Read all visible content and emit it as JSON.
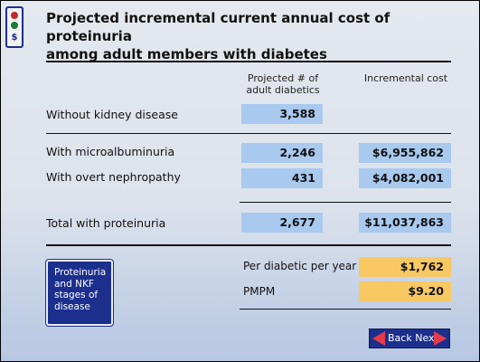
{
  "title_line1": "Projected incremental current annual cost of proteinuria",
  "title_line2": "among adult members with diabetes",
  "columns": {
    "projected_line1": "Projected # of",
    "projected_line2": "adult diabetics",
    "incremental": "Incremental cost"
  },
  "rows": [
    {
      "label": "Without kidney disease",
      "projected": "3,588",
      "incremental": ""
    },
    {
      "label": "With microalbuminuria",
      "projected": "2,246",
      "incremental": "$6,955,862"
    },
    {
      "label": "With overt nephropathy",
      "projected": "431",
      "incremental": "$4,082,001"
    },
    {
      "label": "Total with proteinuria",
      "projected": "2,677",
      "incremental": "$11,037,863"
    }
  ],
  "summary": [
    {
      "label": "Per diabetic per year",
      "value": "$1,762"
    },
    {
      "label": "PMPM",
      "value": "$9.20"
    }
  ],
  "info_button": "Proteinuria\nand NKF\nstages of\ndisease",
  "nav": {
    "back": "Back",
    "next": "Next"
  },
  "logo_symbol": "$",
  "colors": {
    "cell_blue": "#a9c9ef",
    "cell_gold": "#f8c863",
    "button_navy": "#1c2f8c",
    "arrow_red": "#e53a4a"
  },
  "icons": {
    "nav_back": "left-arrow-icon",
    "nav_next": "right-arrow-icon",
    "logo": "traffic-light-logo-icon"
  }
}
